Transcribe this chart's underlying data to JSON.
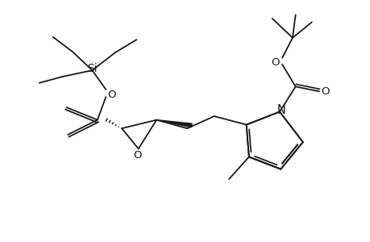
{
  "bg_color": "#ffffff",
  "line_color": "#1a1a1a",
  "line_width": 1.3,
  "font_size": 9.5,
  "fig_width": 4.6,
  "fig_height": 3.0,
  "dpi": 100,
  "xlim": [
    0,
    10
  ],
  "ylim": [
    0,
    6.5
  ]
}
